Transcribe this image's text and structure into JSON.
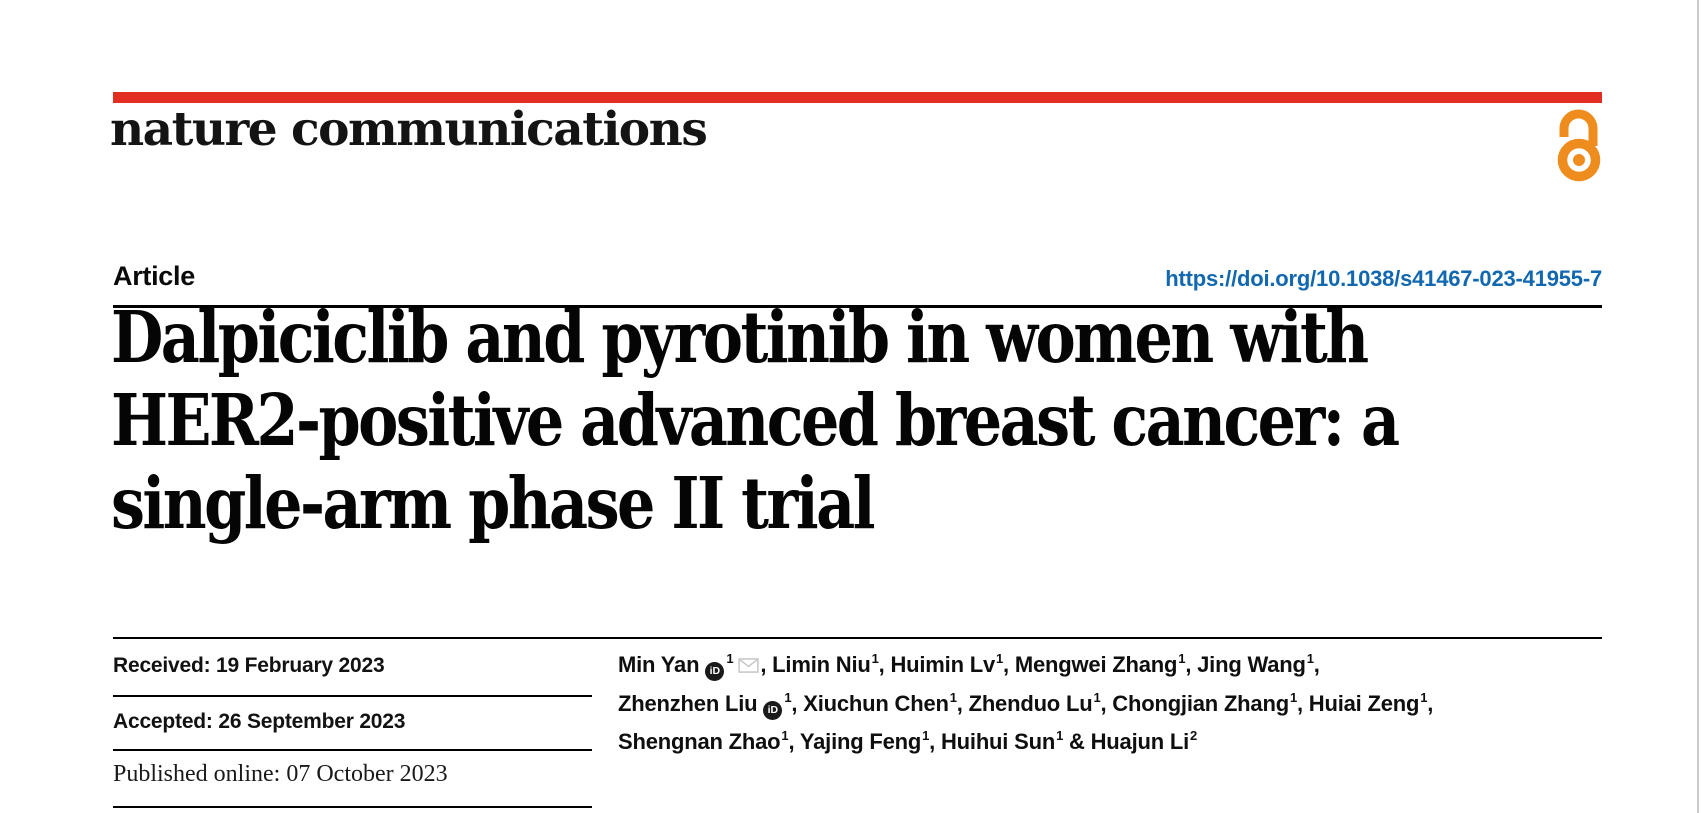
{
  "brand": {
    "logo": "nature communications",
    "accent_red": "#e22d23",
    "open_access_orange": "#ef8c1e",
    "link_blue": "#1268b0"
  },
  "header": {
    "article_label": "Article",
    "doi": "https://doi.org/10.1038/s41467-023-41955-7"
  },
  "title": {
    "lines": [
      "Dalpiciclib and pyrotinib in women with",
      "HER2-positive advanced breast cancer: a",
      "single-arm phase II trial"
    ]
  },
  "dates": {
    "received": "Received: 19 February 2023",
    "accepted": "Accepted: 26 September 2023",
    "published": "Published online: 07 October 2023"
  },
  "authors": {
    "orcid_glyph": "iD",
    "lines": [
      [
        {
          "t": "tx",
          "v": "Min Yan"
        },
        {
          "t": "orcid"
        },
        {
          "t": "sup",
          "v": "1"
        },
        {
          "t": "mail"
        },
        {
          "t": "tx",
          "v": ", Limin Niu"
        },
        {
          "t": "sup",
          "v": "1"
        },
        {
          "t": "tx",
          "v": ", Huimin Lv"
        },
        {
          "t": "sup",
          "v": "1"
        },
        {
          "t": "tx",
          "v": ", Mengwei Zhang"
        },
        {
          "t": "sup",
          "v": "1"
        },
        {
          "t": "tx",
          "v": ", Jing Wang"
        },
        {
          "t": "sup",
          "v": "1"
        },
        {
          "t": "tx",
          "v": ","
        }
      ],
      [
        {
          "t": "tx",
          "v": "Zhenzhen Liu"
        },
        {
          "t": "orcid"
        },
        {
          "t": "sup",
          "v": "1"
        },
        {
          "t": "tx",
          "v": ", Xiuchun Chen"
        },
        {
          "t": "sup",
          "v": "1"
        },
        {
          "t": "tx",
          "v": ", Zhenduo Lu"
        },
        {
          "t": "sup",
          "v": "1"
        },
        {
          "t": "tx",
          "v": ", Chongjian Zhang"
        },
        {
          "t": "sup",
          "v": "1"
        },
        {
          "t": "tx",
          "v": ", Huiai Zeng"
        },
        {
          "t": "sup",
          "v": "1"
        },
        {
          "t": "tx",
          "v": ","
        }
      ],
      [
        {
          "t": "tx",
          "v": "Shengnan Zhao"
        },
        {
          "t": "sup",
          "v": "1"
        },
        {
          "t": "tx",
          "v": ", Yajing Feng"
        },
        {
          "t": "sup",
          "v": "1"
        },
        {
          "t": "tx",
          "v": ", Huihui Sun"
        },
        {
          "t": "sup",
          "v": "1"
        },
        {
          "t": "tx",
          "v": " & Huajun Li"
        },
        {
          "t": "sup",
          "v": "2"
        }
      ]
    ]
  }
}
